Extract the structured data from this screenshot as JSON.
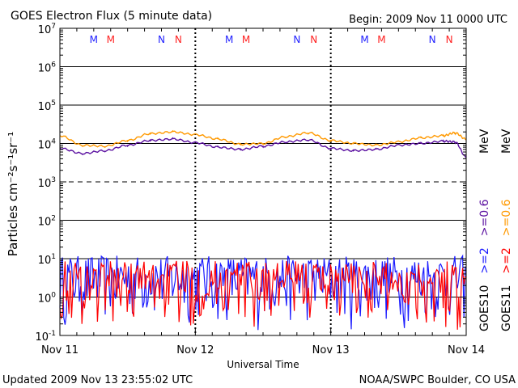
{
  "header": {
    "title": "GOES Electron Flux (5 minute data)",
    "begin": "Begin: 2009 Nov 11 0000 UTC"
  },
  "footer": {
    "updated": "Updated 2009 Nov 13 23:55:02 UTC",
    "source": "NOAA/SWPC Boulder, CO USA"
  },
  "chart_data": {
    "type": "line",
    "title": "GOES Electron Flux (5 minute data)",
    "xlabel": "Universal Time",
    "ylabel": "Particles cm⁻²s⁻¹sr⁻¹",
    "yscale": "log",
    "ylim": [
      0.1,
      10000000
    ],
    "xlim": [
      "2009-11-11 00:00",
      "2009-11-14 00:00"
    ],
    "x_ticks": [
      "Nov 11",
      "Nov 12",
      "Nov 13",
      "Nov 14"
    ],
    "y_ticks": [
      {
        "base": "10",
        "exp": "7"
      },
      {
        "base": "10",
        "exp": "6"
      },
      {
        "base": "10",
        "exp": "5"
      },
      {
        "base": "10",
        "exp": "4"
      },
      {
        "base": "10",
        "exp": "3"
      },
      {
        "base": "10",
        "exp": "2"
      },
      {
        "base": "10",
        "exp": "1"
      },
      {
        "base": "10",
        "exp": "0"
      },
      {
        "base": "10",
        "exp": "-1"
      }
    ],
    "grid": true,
    "local_time_markers": [
      {
        "label": "M",
        "color": "#2020ff",
        "time": "2009-11-11 06:00"
      },
      {
        "label": "M",
        "color": "#ff2020",
        "time": "2009-11-11 09:00"
      },
      {
        "label": "N",
        "color": "#2020ff",
        "time": "2009-11-11 18:00"
      },
      {
        "label": "N",
        "color": "#ff2020",
        "time": "2009-11-11 21:00"
      },
      {
        "label": "M",
        "color": "#2020ff",
        "time": "2009-11-12 06:00"
      },
      {
        "label": "M",
        "color": "#ff2020",
        "time": "2009-11-12 09:00"
      },
      {
        "label": "N",
        "color": "#2020ff",
        "time": "2009-11-12 18:00"
      },
      {
        "label": "N",
        "color": "#ff2020",
        "time": "2009-11-12 21:00"
      },
      {
        "label": "M",
        "color": "#2020ff",
        "time": "2009-11-13 06:00"
      },
      {
        "label": "M",
        "color": "#ff2020",
        "time": "2009-11-13 09:00"
      },
      {
        "label": "N",
        "color": "#2020ff",
        "time": "2009-11-13 18:00"
      },
      {
        "label": "N",
        "color": "#ff2020",
        "time": "2009-11-13 21:00"
      }
    ],
    "series": [
      {
        "name": ">=0.6 MeV",
        "satellite": "GOES11",
        "color": "#ff9900",
        "x": [
          "2009-11-11 00:00",
          "2009-11-11 04:00",
          "2009-11-11 08:00",
          "2009-11-11 12:00",
          "2009-11-11 16:00",
          "2009-11-11 20:00",
          "2009-11-12 00:00",
          "2009-11-12 04:00",
          "2009-11-12 08:00",
          "2009-11-12 12:00",
          "2009-11-12 16:00",
          "2009-11-12 20:00",
          "2009-11-13 00:00",
          "2009-11-13 04:00",
          "2009-11-13 08:00",
          "2009-11-13 12:00",
          "2009-11-13 16:00",
          "2009-11-13 20:00",
          "2009-11-13 22:00",
          "2009-11-14 00:00"
        ],
        "y": [
          16000,
          9000,
          8500,
          12000,
          18000,
          20000,
          17000,
          13000,
          9500,
          10000,
          15000,
          19000,
          12000,
          10000,
          9000,
          11000,
          14000,
          16000,
          19000,
          13000
        ]
      },
      {
        "name": ">=2 MeV",
        "satellite": "GOES11",
        "color": "#ff0000",
        "x": [
          "2009-11-11 00:00",
          "2009-11-14 00:00"
        ],
        "y_range": [
          0.1,
          9
        ]
      },
      {
        "name": ">=0.6 MeV",
        "satellite": "GOES10",
        "color": "#5a0fa0",
        "x": [
          "2009-11-11 00:00",
          "2009-11-11 04:00",
          "2009-11-11 08:00",
          "2009-11-11 12:00",
          "2009-11-11 16:00",
          "2009-11-11 20:00",
          "2009-11-12 00:00",
          "2009-11-12 04:00",
          "2009-11-12 08:00",
          "2009-11-12 12:00",
          "2009-11-12 16:00",
          "2009-11-12 20:00",
          "2009-11-13 00:00",
          "2009-11-13 04:00",
          "2009-11-13 08:00",
          "2009-11-13 12:00",
          "2009-11-13 16:00",
          "2009-11-13 20:00",
          "2009-11-13 22:00",
          "2009-11-14 00:00"
        ],
        "y": [
          7500,
          5500,
          6500,
          9000,
          12000,
          13000,
          10500,
          8000,
          7000,
          8500,
          11000,
          12500,
          7500,
          6500,
          7000,
          9000,
          10000,
          11500,
          11000,
          4500
        ]
      },
      {
        "name": ">=2 MeV",
        "satellite": "GOES10",
        "color": "#1a1aff",
        "x": [
          "2009-11-11 00:00",
          "2009-11-14 00:00"
        ],
        "y_range": [
          0.1,
          12
        ]
      }
    ],
    "legend": {
      "placement": "right",
      "goes10": {
        "label": "GOES10",
        "entries": [
          {
            "text": ">=2",
            "color": "#1a1aff"
          },
          {
            "text": ">=0.6",
            "color": "#5a0fa0"
          }
        ]
      },
      "goes11": {
        "label": "GOES11",
        "entries": [
          {
            "text": ">=2",
            "color": "#ff0000"
          },
          {
            "text": ">=0.6",
            "color": "#ff9900"
          }
        ]
      },
      "unit": "MeV"
    }
  }
}
